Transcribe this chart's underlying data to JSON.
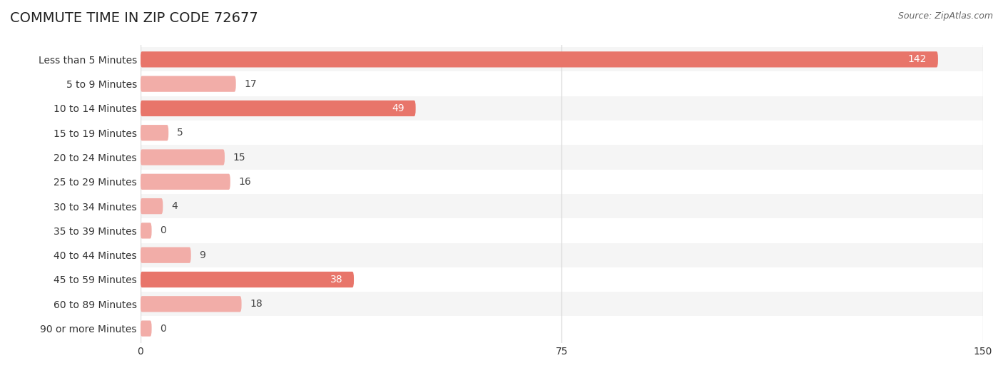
{
  "title": "COMMUTE TIME IN ZIP CODE 72677",
  "source_text": "Source: ZipAtlas.com",
  "categories": [
    "Less than 5 Minutes",
    "5 to 9 Minutes",
    "10 to 14 Minutes",
    "15 to 19 Minutes",
    "20 to 24 Minutes",
    "25 to 29 Minutes",
    "30 to 34 Minutes",
    "35 to 39 Minutes",
    "40 to 44 Minutes",
    "45 to 59 Minutes",
    "60 to 89 Minutes",
    "90 or more Minutes"
  ],
  "values": [
    142,
    17,
    49,
    5,
    15,
    16,
    4,
    0,
    9,
    38,
    18,
    0
  ],
  "bar_color_main": "#E8756A",
  "bar_color_light": "#F2ADA8",
  "background_color": "#ffffff",
  "row_bg_colors": [
    "#f5f5f5",
    "#ffffff"
  ],
  "xlim": [
    0,
    150
  ],
  "xticks": [
    0,
    75,
    150
  ],
  "title_fontsize": 14,
  "label_fontsize": 10,
  "value_fontsize": 10,
  "source_fontsize": 9,
  "bar_height": 0.65,
  "grid_color": "#dddddd"
}
